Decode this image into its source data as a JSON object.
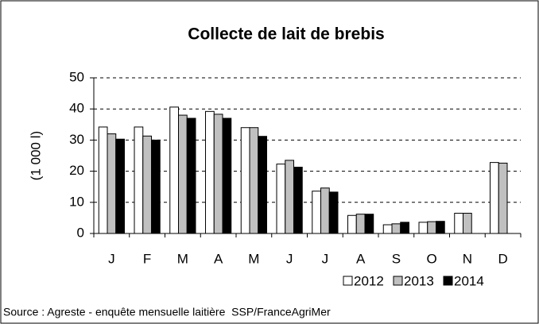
{
  "chart_data": {
    "type": "bar",
    "title": "Collecte de lait de brebis",
    "y_label": "(1 000 l)",
    "source": "Source : Agreste - enquête mensuelle laitière  SSP/FranceAgriMer",
    "categories": [
      "J",
      "F",
      "M",
      "A",
      "M",
      "J",
      "J",
      "A",
      "S",
      "O",
      "N",
      "D"
    ],
    "series": [
      {
        "name": "2012",
        "color": "#ffffff",
        "values": [
          34.2,
          34.2,
          40.6,
          39.2,
          34,
          22.3,
          13.6,
          5.8,
          2.8,
          3.6,
          6.5,
          22.8
        ]
      },
      {
        "name": "2013",
        "color": "#c0c0c0",
        "values": [
          32,
          31.3,
          38,
          38.3,
          34,
          23.5,
          14.6,
          6.2,
          3.1,
          3.8,
          6.5,
          22.6
        ]
      },
      {
        "name": "2014",
        "color": "#000000",
        "values": [
          30.3,
          30,
          37,
          37,
          31.2,
          21.3,
          13.3,
          6.2,
          3.6,
          3.9,
          null,
          null
        ]
      }
    ],
    "ylim": [
      0,
      50
    ],
    "yticks": [
      0,
      10,
      20,
      30,
      40,
      50
    ],
    "grid": true,
    "legend": "bottom-right"
  }
}
